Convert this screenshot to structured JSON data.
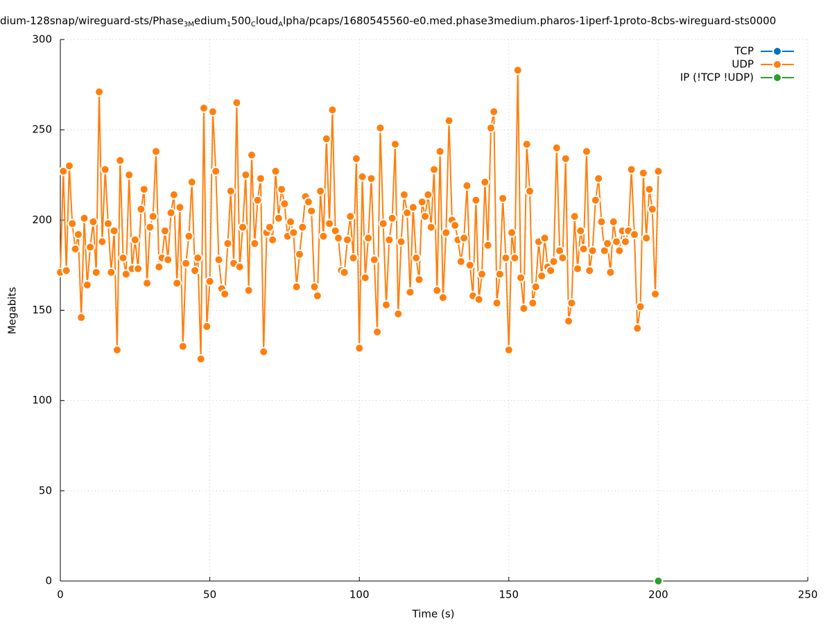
{
  "chart_data": {
    "type": "line",
    "title_parts": [
      "dium-128snap/wireguard-sts/Phase",
      "3M",
      "edium",
      "1",
      "500",
      "C",
      "loud",
      "A",
      "lpha/pcaps/1680545560-e0.med.phase3medium.pharos-1iperf-1proto-8cbs-wireguard-sts0000"
    ],
    "xlabel": "Time (s)",
    "ylabel": "Megabits",
    "xlim": [
      0,
      250
    ],
    "xticks": [
      0,
      50,
      100,
      150,
      200,
      250
    ],
    "ylim": [
      0,
      300
    ],
    "yticks": [
      0,
      50,
      100,
      150,
      200,
      250,
      300
    ],
    "grid": true,
    "legend": "top-right",
    "series": [
      {
        "name": "TCP",
        "color": "#0072bd",
        "x": [],
        "values": []
      },
      {
        "name": "UDP",
        "color": "#ff7f0e",
        "x": [
          0,
          1,
          2,
          3,
          4,
          5,
          6,
          7,
          8,
          9,
          10,
          11,
          12,
          13,
          14,
          15,
          16,
          17,
          18,
          19,
          20,
          21,
          22,
          23,
          24,
          25,
          26,
          27,
          28,
          29,
          30,
          31,
          32,
          33,
          34,
          35,
          36,
          37,
          38,
          39,
          40,
          41,
          42,
          43,
          44,
          45,
          46,
          47,
          48,
          49,
          50,
          51,
          52,
          53,
          54,
          55,
          56,
          57,
          58,
          59,
          60,
          61,
          62,
          63,
          64,
          65,
          66,
          67,
          68,
          69,
          70,
          71,
          72,
          73,
          74,
          75,
          76,
          77,
          78,
          79,
          80,
          81,
          82,
          83,
          84,
          85,
          86,
          87,
          88,
          89,
          90,
          91,
          92,
          93,
          94,
          95,
          96,
          97,
          98,
          99,
          100,
          101,
          102,
          103,
          104,
          105,
          106,
          107,
          108,
          109,
          110,
          111,
          112,
          113,
          114,
          115,
          116,
          117,
          118,
          119,
          120,
          121,
          122,
          123,
          124,
          125,
          126,
          127,
          128,
          129,
          130,
          131,
          132,
          133,
          134,
          135,
          136,
          137,
          138,
          139,
          140,
          141,
          142,
          143,
          144,
          145,
          146,
          147,
          148,
          149,
          150,
          151,
          152,
          153,
          154,
          155,
          156,
          157,
          158,
          159,
          160,
          161,
          162,
          163,
          164,
          165,
          166,
          167,
          168,
          169,
          170,
          171,
          172,
          173,
          174,
          175,
          176,
          177,
          178,
          179,
          180,
          181,
          182,
          183,
          184,
          185,
          186,
          187,
          188,
          189,
          190,
          191,
          192,
          193,
          194,
          195,
          196,
          197,
          198,
          199,
          200
        ],
        "values": [
          171,
          227,
          172,
          230,
          198,
          184,
          192,
          146,
          201,
          164,
          185,
          199,
          171,
          271,
          188,
          228,
          198,
          171,
          194,
          128,
          233,
          179,
          170,
          225,
          173,
          189,
          173,
          206,
          217,
          165,
          196,
          202,
          238,
          174,
          179,
          194,
          178,
          204,
          214,
          165,
          207,
          130,
          176,
          191,
          221,
          172,
          179,
          123,
          262,
          141,
          166,
          260,
          227,
          178,
          162,
          159,
          187,
          216,
          176,
          265,
          174,
          196,
          225,
          161,
          236,
          187,
          211,
          223,
          127,
          193,
          196,
          189,
          227,
          201,
          217,
          209,
          191,
          199,
          193,
          163,
          181,
          196,
          213,
          210,
          205,
          163,
          158,
          216,
          191,
          245,
          198,
          261,
          194,
          190,
          172,
          171,
          189,
          202,
          179,
          234,
          129,
          224,
          168,
          190,
          223,
          178,
          138,
          251,
          198,
          153,
          189,
          201,
          242,
          148,
          188,
          214,
          204,
          160,
          207,
          179,
          167,
          210,
          202,
          214,
          196,
          228,
          161,
          238,
          157,
          193,
          255,
          200,
          197,
          189,
          177,
          190,
          219,
          175,
          158,
          211,
          156,
          170,
          221,
          186,
          251,
          260,
          154,
          170,
          212,
          179,
          128,
          193,
          179,
          283,
          168,
          151,
          242,
          216,
          154,
          163,
          188,
          169,
          190,
          174,
          172,
          177,
          240,
          183,
          179,
          234,
          144,
          154,
          202,
          173,
          194,
          184,
          238,
          172,
          183,
          211,
          223,
          199,
          183,
          187,
          171,
          199,
          188,
          183,
          194,
          188,
          194,
          228,
          192,
          140,
          152,
          226,
          190,
          217,
          206,
          159,
          227
        ]
      },
      {
        "name": "IP (!TCP  !UDP)",
        "color": "#2ca02c",
        "x": [
          200
        ],
        "values": [
          0
        ]
      }
    ]
  }
}
